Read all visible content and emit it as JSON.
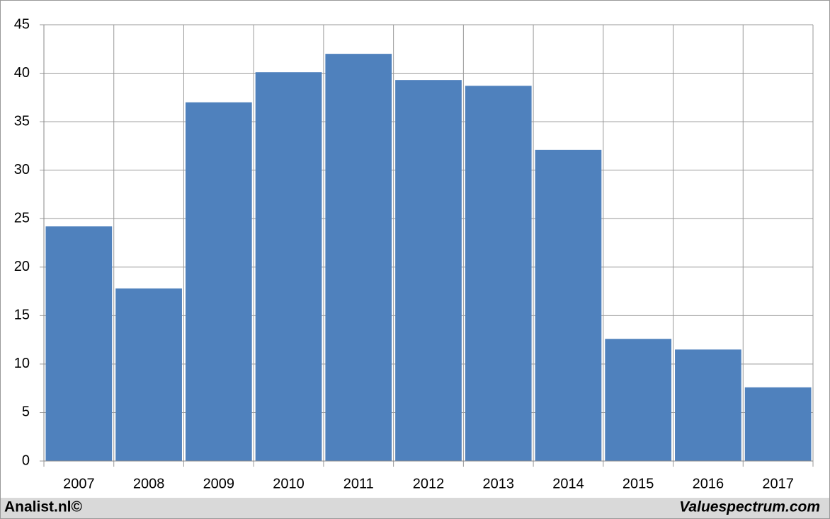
{
  "chart_data": {
    "type": "bar",
    "categories": [
      "2007",
      "2008",
      "2009",
      "2010",
      "2011",
      "2012",
      "2013",
      "2014",
      "2015",
      "2016",
      "2017"
    ],
    "values": [
      24.2,
      17.8,
      37.0,
      40.1,
      42.0,
      39.3,
      38.7,
      32.1,
      12.6,
      11.5,
      7.6
    ],
    "color": "#4f81bd",
    "ylim": [
      0,
      45
    ],
    "yticks": [
      0,
      5,
      10,
      15,
      20,
      25,
      30,
      35,
      40,
      45
    ],
    "grid": true
  },
  "footer": {
    "left": "Analist.nl©",
    "right": "Valuespectrum.com"
  }
}
